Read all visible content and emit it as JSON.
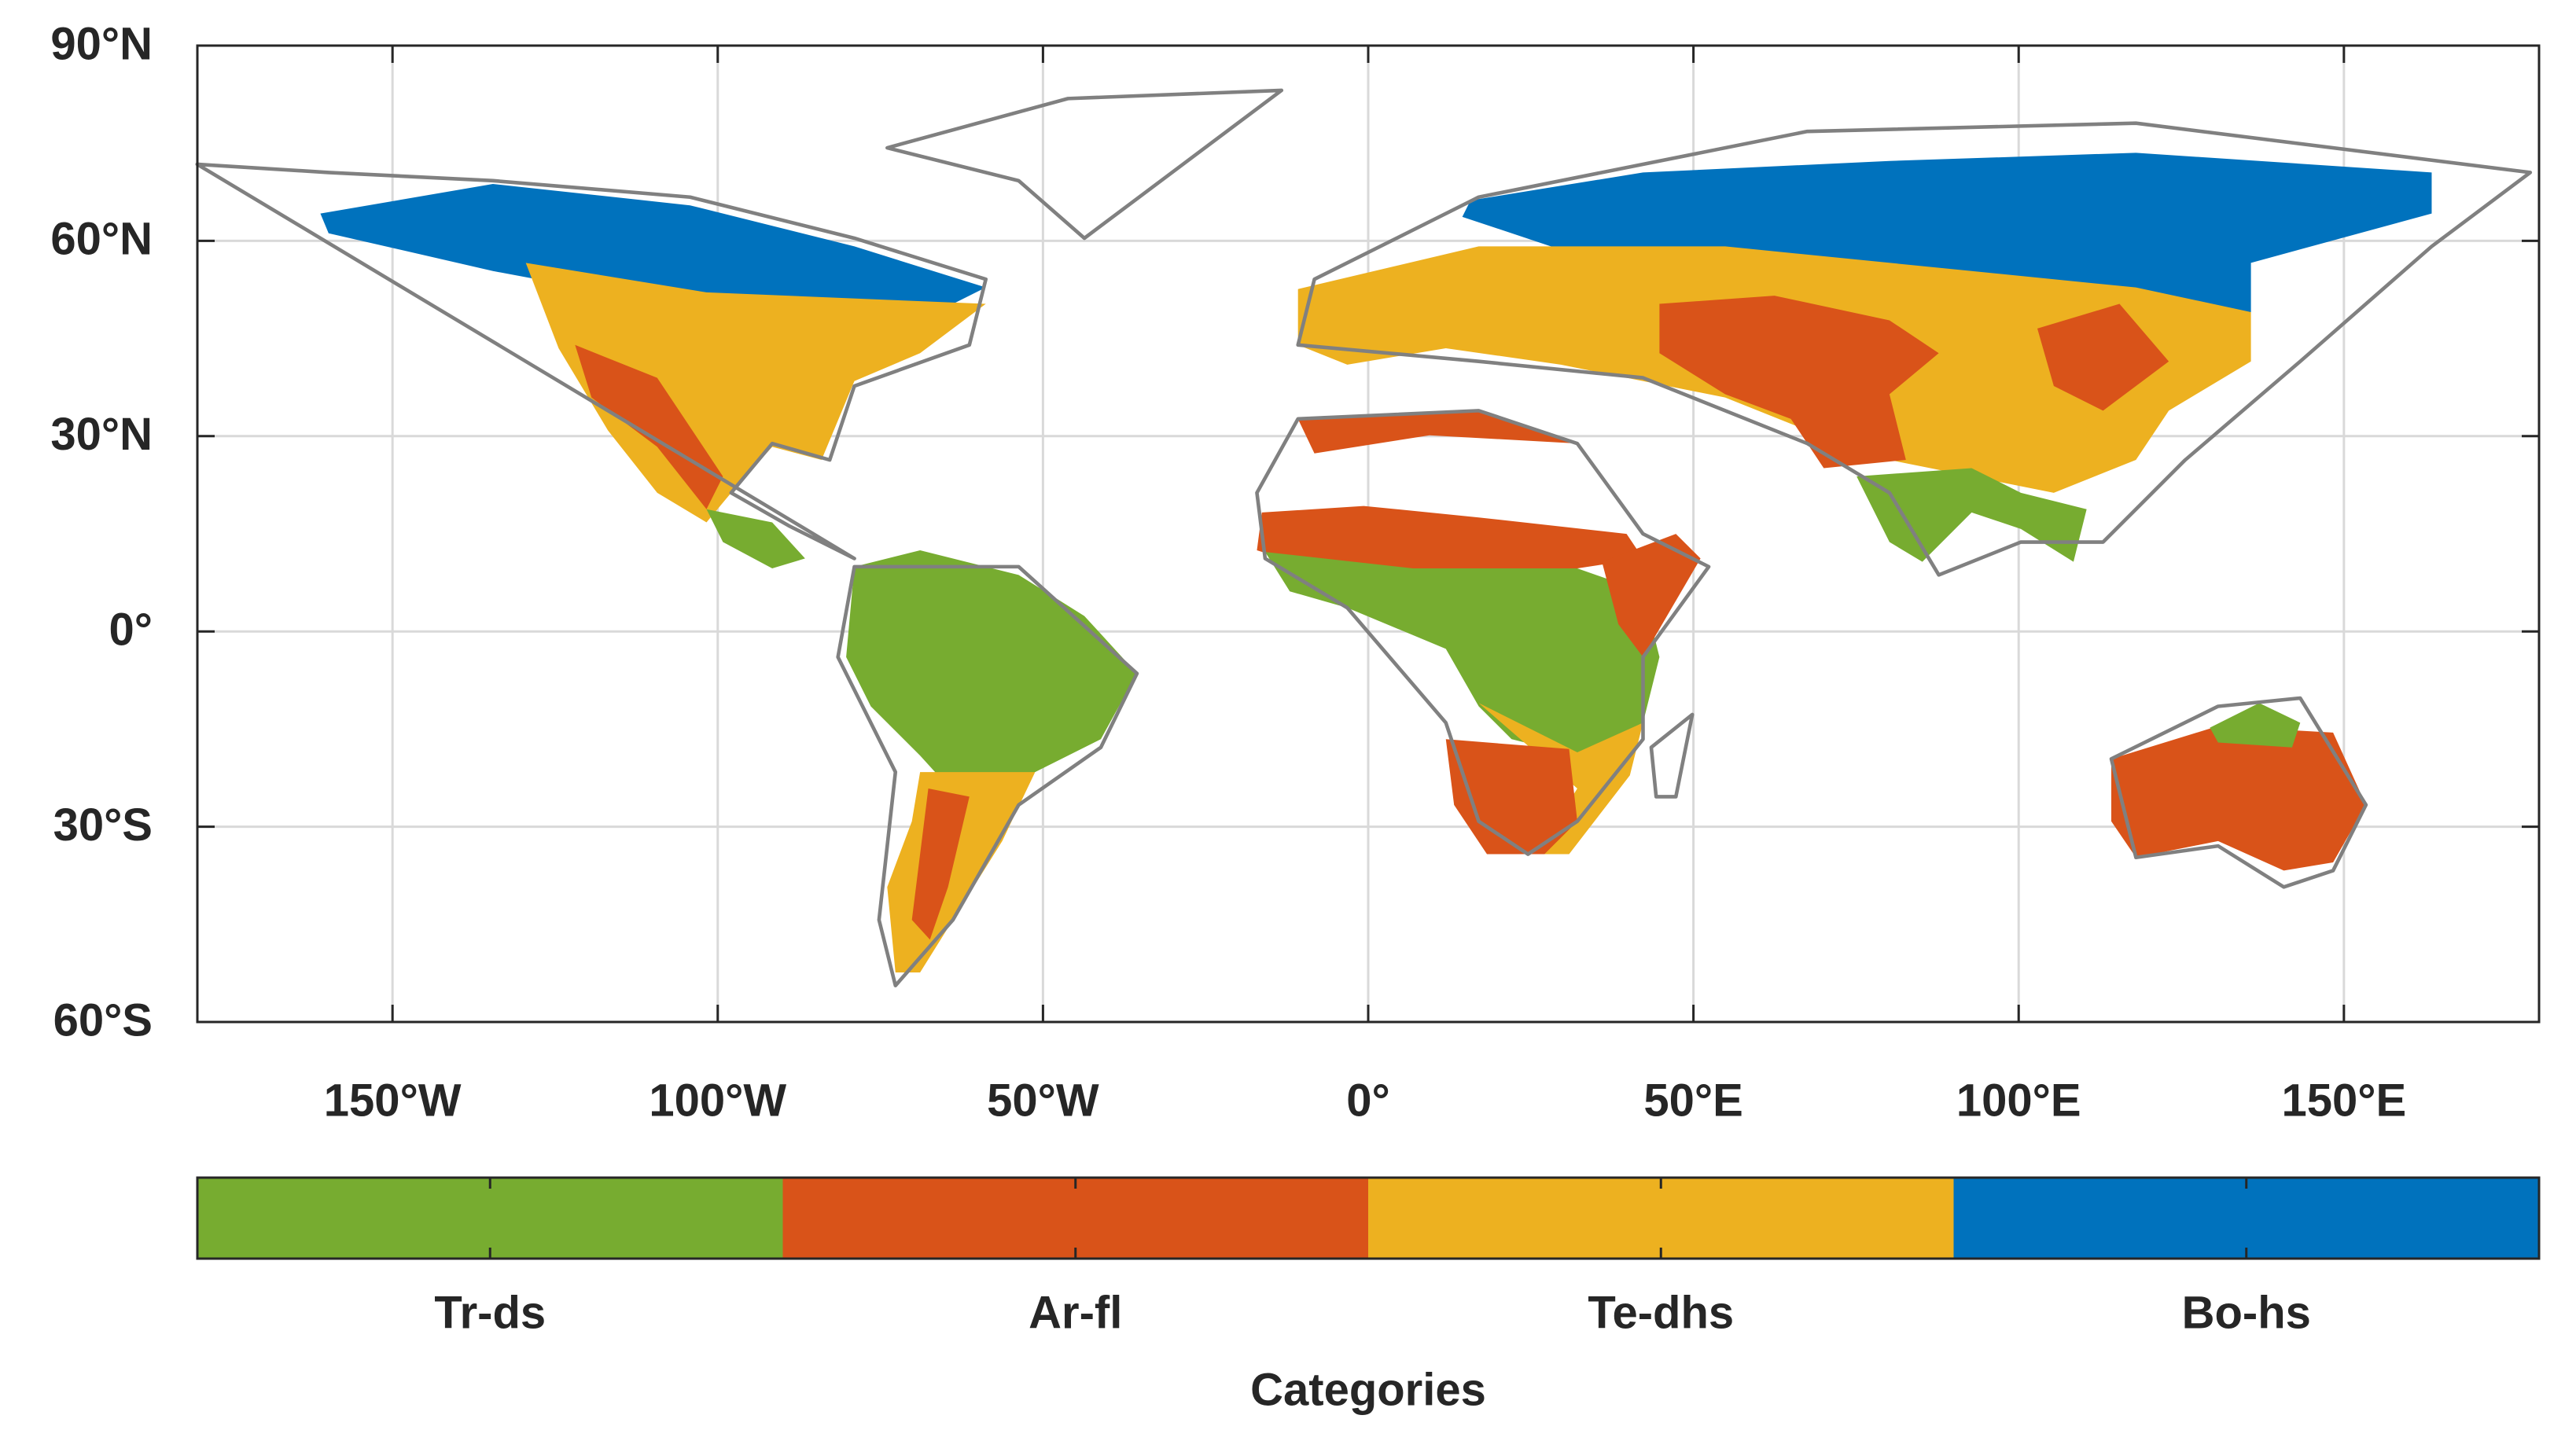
{
  "map": {
    "xlim": [
      -180,
      180
    ],
    "ylim": [
      -60,
      90
    ],
    "xticks": [
      {
        "value": -150,
        "label": "150°W"
      },
      {
        "value": -100,
        "label": "100°W"
      },
      {
        "value": -50,
        "label": "50°W"
      },
      {
        "value": 0,
        "label": "0°"
      },
      {
        "value": 50,
        "label": "50°E"
      },
      {
        "value": 100,
        "label": "100°E"
      },
      {
        "value": 150,
        "label": "150°E"
      }
    ],
    "yticks": [
      {
        "value": 90,
        "label": "90°N"
      },
      {
        "value": 60,
        "label": "60°N"
      },
      {
        "value": 30,
        "label": "30°N"
      },
      {
        "value": 0,
        "label": "0°"
      },
      {
        "value": -30,
        "label": "30°S"
      },
      {
        "value": -60,
        "label": "60°S"
      }
    ],
    "grid": true,
    "colorbar": {
      "label": "Categories",
      "categories": [
        {
          "name": "Tr-ds",
          "color": "#77ac30"
        },
        {
          "name": "Ar-fl",
          "color": "#d95319"
        },
        {
          "name": "Te-dhs",
          "color": "#edb120"
        },
        {
          "name": "Bo-hs",
          "color": "#0072bd"
        }
      ]
    }
  }
}
